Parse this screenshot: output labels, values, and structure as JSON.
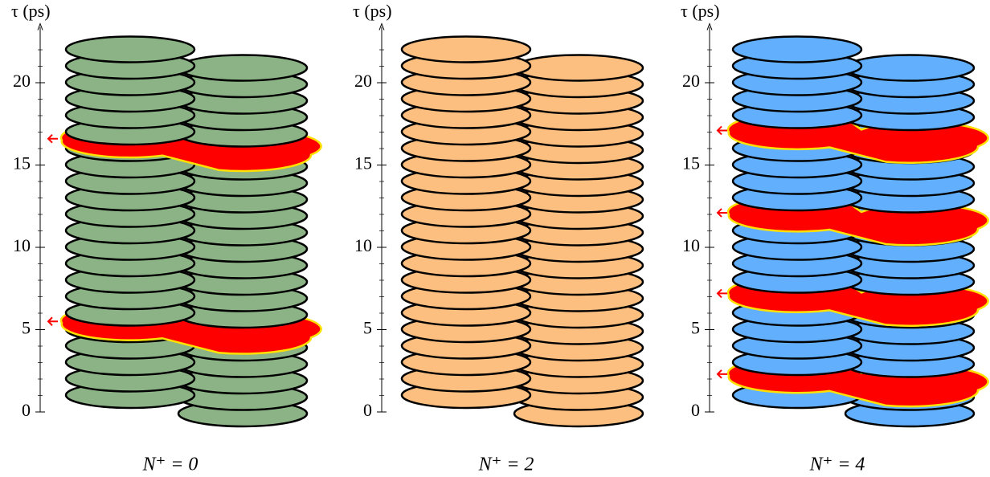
{
  "panels": [
    {
      "axis_label": "τ (ps)",
      "caption": "N⁺ = 0",
      "color": "#8cb386",
      "ylim": [
        0,
        23
      ],
      "yticks": [
        0,
        5,
        10,
        15,
        20
      ],
      "events": [
        16.6,
        5.5
      ]
    },
    {
      "axis_label": "τ (ps)",
      "caption": "N⁺ = 2",
      "color": "#fdbf80",
      "ylim": [
        0,
        23
      ],
      "yticks": [
        0,
        5,
        10,
        15,
        20
      ],
      "events": []
    },
    {
      "axis_label": "τ (ps)",
      "caption": "N⁺ = 4",
      "color": "#62b0fd",
      "ylim": [
        0,
        23
      ],
      "yticks": [
        0,
        5,
        10,
        15,
        20
      ],
      "events": [
        17.1,
        12.1,
        7.2,
        2.3
      ]
    }
  ]
}
